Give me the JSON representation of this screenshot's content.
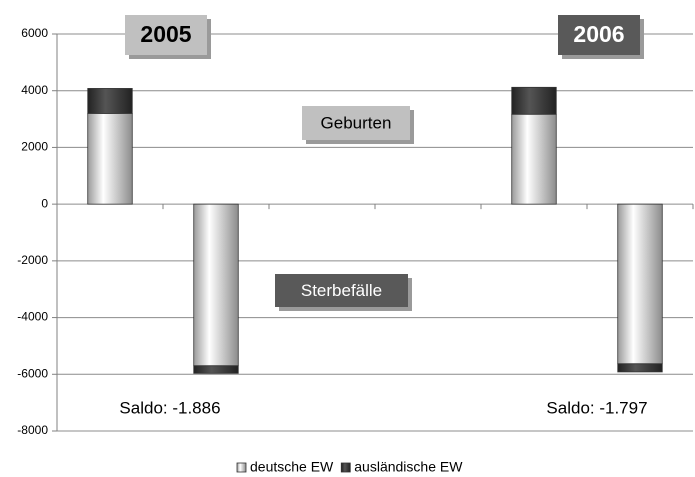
{
  "chart_data": {
    "type": "bar",
    "stacked": true,
    "categories": [
      null,
      null,
      null,
      null,
      null,
      null
    ],
    "series": [
      {
        "name": "deutsche EW",
        "color": "#d4d4d4",
        "values": [
          3200,
          -5700,
          null,
          null,
          3170,
          -5630
        ]
      },
      {
        "name": "ausländische EW",
        "color": "#3f3f3f",
        "values": [
          880,
          -266,
          null,
          null,
          950,
          -287
        ]
      }
    ],
    "ylim": [
      -8000,
      6000
    ],
    "yticks": [
      -8000,
      -6000,
      -4000,
      -2000,
      0,
      2000,
      4000,
      6000
    ],
    "grid": true,
    "legend": "bottom",
    "annotations": [
      "2005",
      "2006",
      "Geburten",
      "Sterbefälle",
      "Saldo: -1.886",
      "Saldo: -1.797"
    ]
  }
}
